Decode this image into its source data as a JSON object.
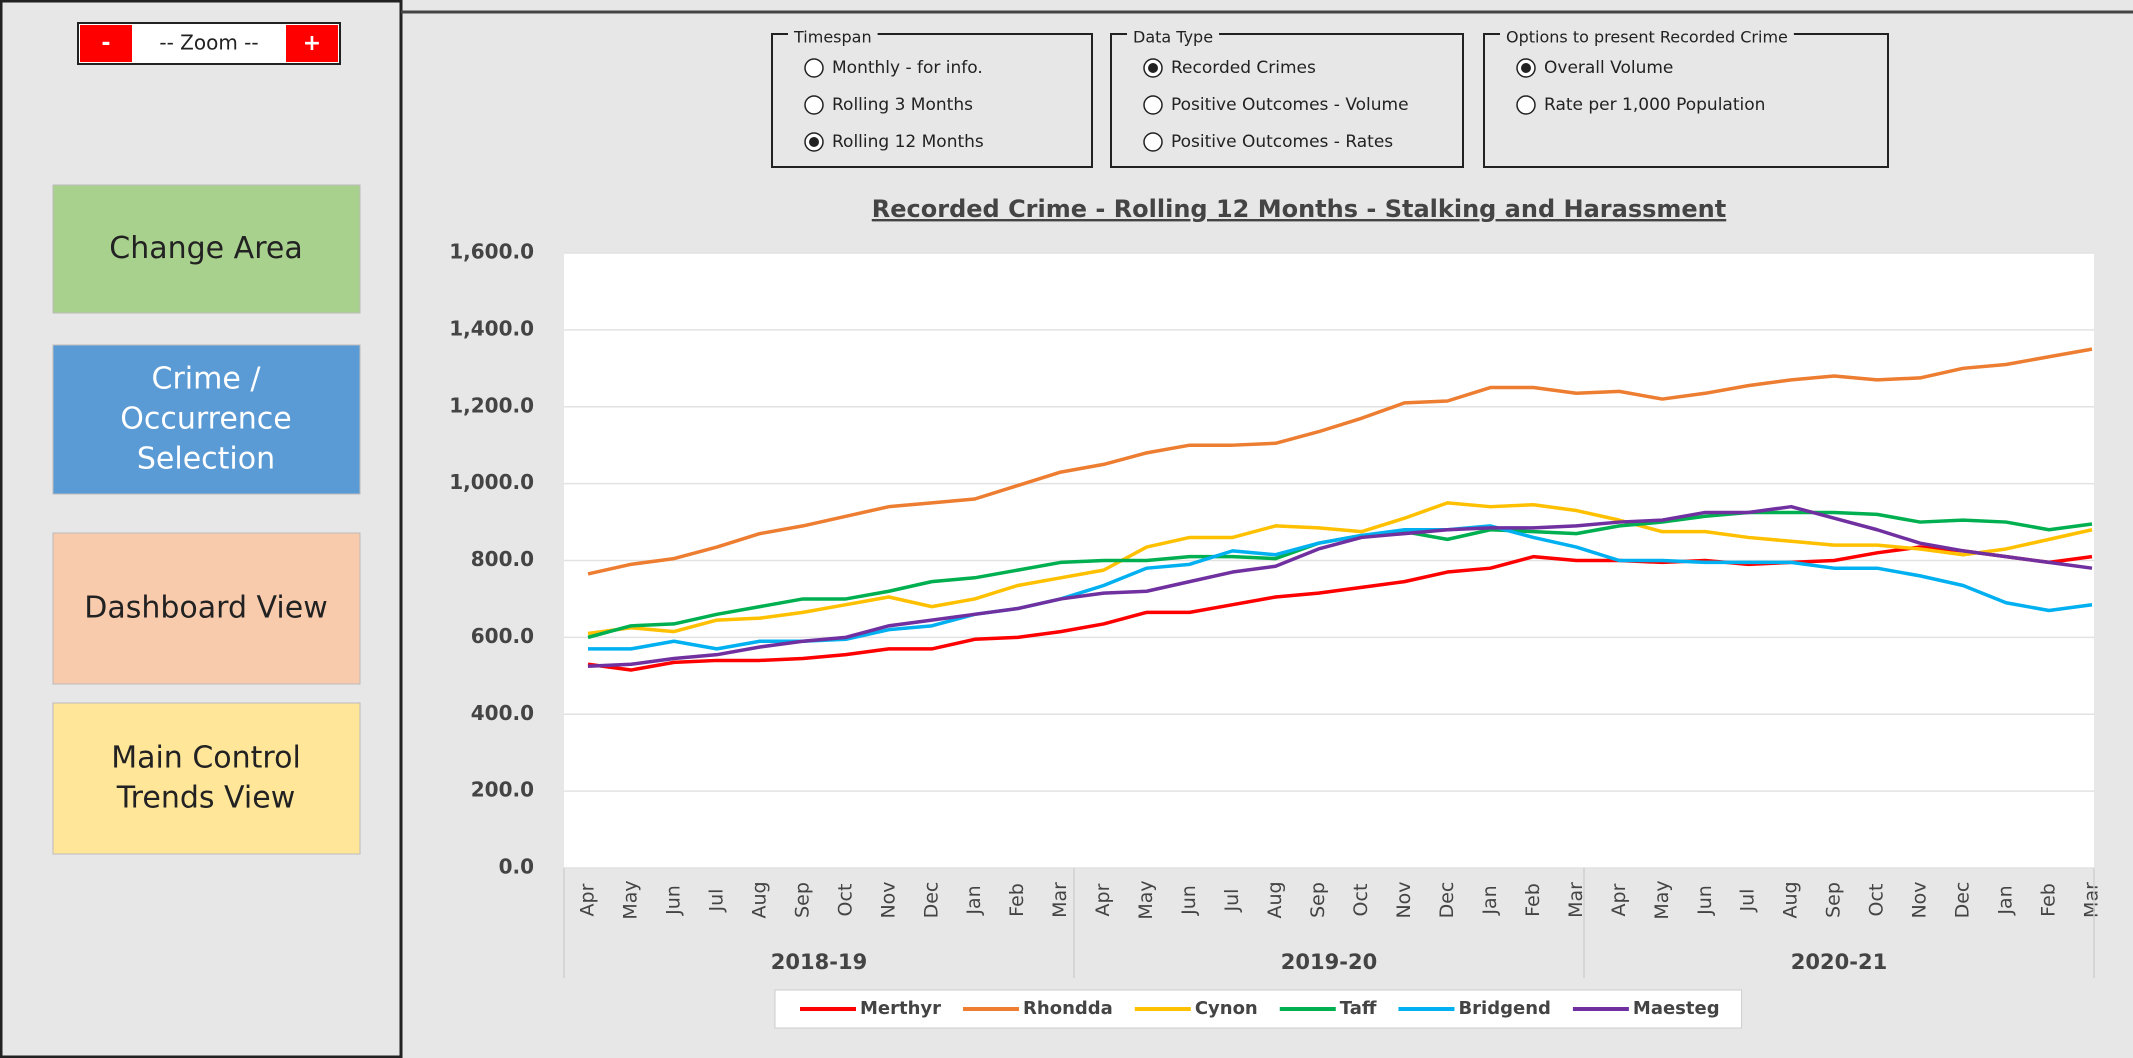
{
  "zoom": {
    "minus": "-",
    "label": "-- Zoom --",
    "plus": "+"
  },
  "buttons": [
    "Change Area",
    "Crime / Occurrence Selection",
    "Dashboard View",
    "Main Control Trends View"
  ],
  "option_groups": [
    {
      "title": "Timespan",
      "options": [
        "Monthly - for info.",
        "Rolling 3 Months",
        "Rolling 12 Months"
      ],
      "selected": 2
    },
    {
      "title": "Data Type",
      "options": [
        "Recorded Crimes",
        "Positive Outcomes - Volume",
        "Positive Outcomes - Rates"
      ],
      "selected": 0
    },
    {
      "title": "Options to present Recorded Crime",
      "options": [
        "Overall Volume",
        "Rate per 1,000 Population"
      ],
      "selected": 0
    }
  ],
  "chart_data": {
    "type": "line",
    "title": "Recorded Crime - Rolling 12 Months - Stalking and Harassment",
    "categories": [
      "Apr",
      "May",
      "Jun",
      "Jul",
      "Aug",
      "Sep",
      "Oct",
      "Nov",
      "Dec",
      "Jan",
      "Feb",
      "Mar",
      "Apr",
      "May",
      "Jun",
      "Jul",
      "Aug",
      "Sep",
      "Oct",
      "Nov",
      "Dec",
      "Jan",
      "Feb",
      "Mar",
      "Apr",
      "May",
      "Jun",
      "Jul",
      "Aug",
      "Sep",
      "Oct",
      "Nov",
      "Dec",
      "Jan",
      "Feb",
      "Mar"
    ],
    "category_groups": [
      "2018-19",
      "2019-20",
      "2020-21"
    ],
    "ylim": [
      0,
      1600
    ],
    "yticks": [
      {
        "value": 0,
        "label": "0.0"
      },
      {
        "value": 200,
        "label": "200.0"
      },
      {
        "value": 400,
        "label": "400.0"
      },
      {
        "value": 600,
        "label": "600.0"
      },
      {
        "value": 800,
        "label": "800.0"
      },
      {
        "value": 1000,
        "label": "1,000.0"
      },
      {
        "value": 1200,
        "label": "1,200.0"
      },
      {
        "value": 1400,
        "label": "1,400.0"
      },
      {
        "value": 1600,
        "label": "1,600.0"
      }
    ],
    "grid": true,
    "series": [
      {
        "name": "Merthyr",
        "color": "#ff0000",
        "values": [
          530,
          515,
          535,
          540,
          540,
          545,
          555,
          570,
          570,
          595,
          600,
          615,
          635,
          665,
          665,
          685,
          705,
          715,
          730,
          745,
          770,
          780,
          810,
          800,
          800,
          795,
          800,
          790,
          795,
          800,
          820,
          835,
          825,
          810,
          795,
          810
        ]
      },
      {
        "name": "Rhondda",
        "color": "#ed7d31",
        "values": [
          765,
          790,
          805,
          835,
          870,
          890,
          915,
          940,
          950,
          960,
          995,
          1030,
          1050,
          1080,
          1100,
          1100,
          1105,
          1135,
          1170,
          1210,
          1215,
          1250,
          1250,
          1235,
          1240,
          1220,
          1235,
          1255,
          1270,
          1280,
          1270,
          1275,
          1300,
          1310,
          1330,
          1350
        ]
      },
      {
        "name": "Cynon",
        "color": "#ffc000",
        "values": [
          610,
          625,
          615,
          645,
          650,
          665,
          685,
          705,
          680,
          700,
          735,
          755,
          775,
          835,
          860,
          860,
          890,
          885,
          875,
          910,
          950,
          940,
          945,
          930,
          905,
          875,
          875,
          860,
          850,
          840,
          840,
          830,
          815,
          830,
          855,
          880
        ]
      },
      {
        "name": "Taff",
        "color": "#00b050",
        "values": [
          600,
          630,
          635,
          660,
          680,
          700,
          700,
          720,
          745,
          755,
          775,
          795,
          800,
          800,
          810,
          810,
          805,
          845,
          865,
          875,
          855,
          880,
          875,
          870,
          890,
          900,
          915,
          925,
          925,
          925,
          920,
          900,
          905,
          900,
          880,
          895
        ]
      },
      {
        "name": "Bridgend",
        "color": "#00b0f0",
        "values": [
          570,
          570,
          590,
          570,
          590,
          590,
          595,
          620,
          630,
          660,
          675,
          700,
          735,
          780,
          790,
          825,
          815,
          845,
          865,
          880,
          880,
          890,
          860,
          835,
          800,
          800,
          795,
          795,
          795,
          780,
          780,
          760,
          735,
          690,
          670,
          685
        ]
      },
      {
        "name": "Maesteg",
        "color": "#7030a0",
        "values": [
          525,
          530,
          545,
          555,
          575,
          590,
          600,
          630,
          645,
          660,
          675,
          700,
          715,
          720,
          745,
          770,
          785,
          830,
          860,
          870,
          880,
          885,
          885,
          890,
          900,
          905,
          925,
          925,
          940,
          910,
          880,
          845,
          825,
          810,
          795,
          780
        ]
      }
    ]
  }
}
